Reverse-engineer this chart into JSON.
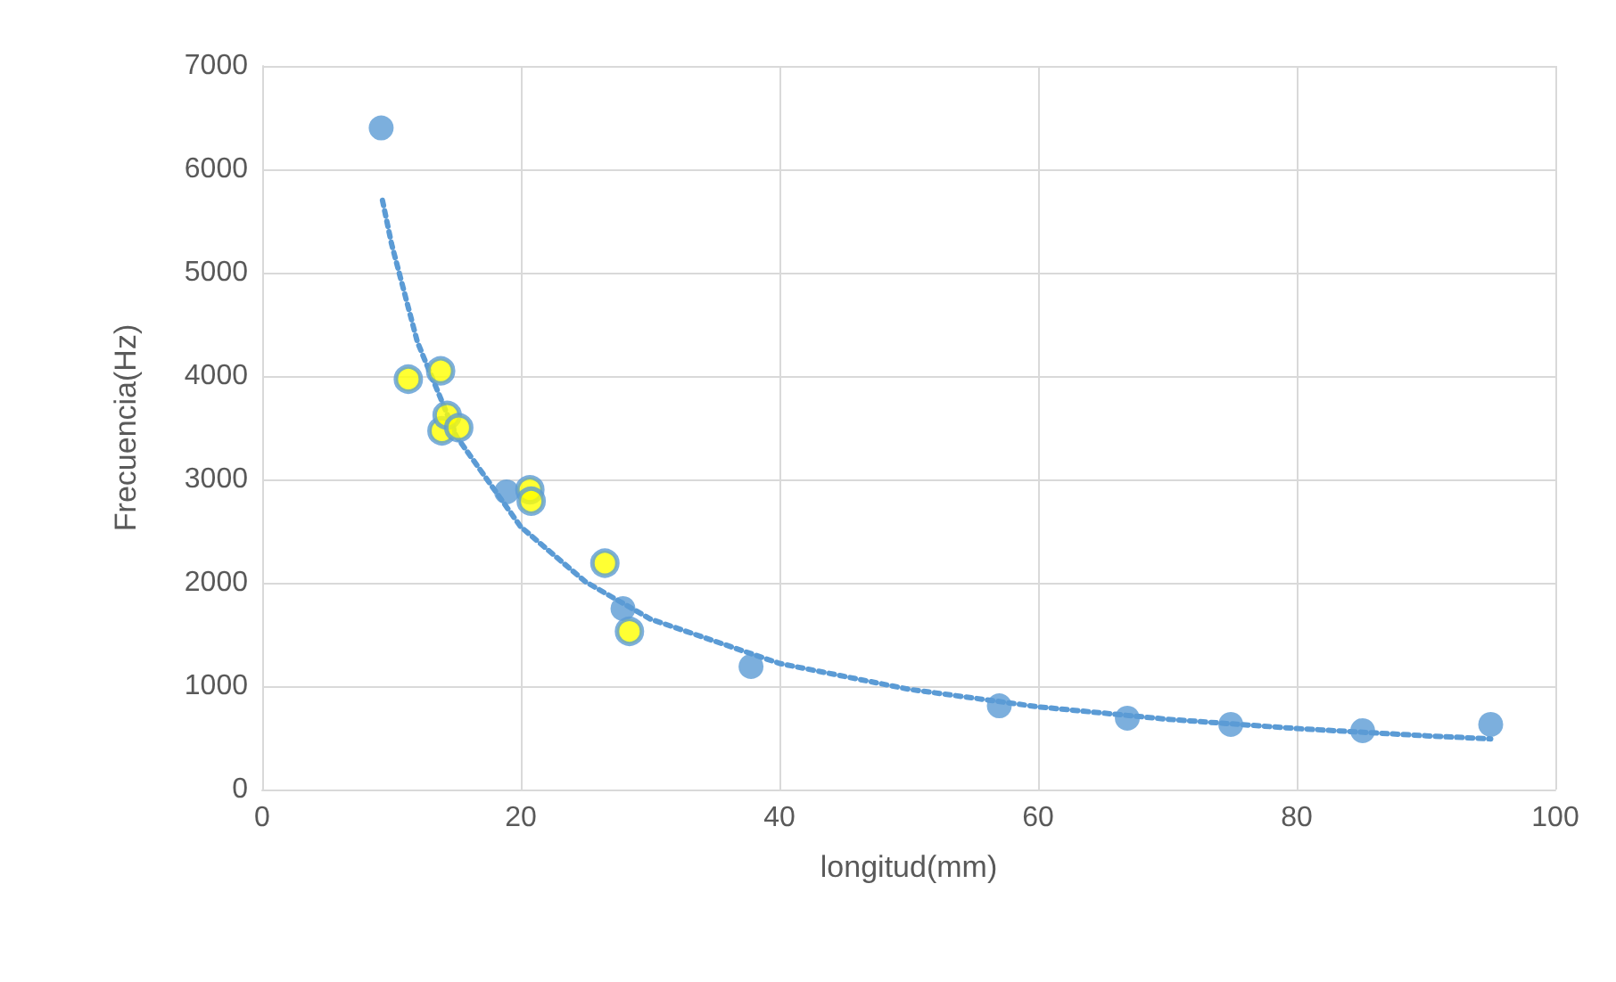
{
  "chart_data": {
    "type": "scatter",
    "xlabel": "longitud(mm)",
    "ylabel": "Frecuencia(Hz)",
    "xlim": [
      0,
      100
    ],
    "xticks": [
      0,
      20,
      40,
      60,
      80,
      100
    ],
    "ylim": [
      0,
      7000
    ],
    "yticks": [
      0,
      1000,
      2000,
      3000,
      4000,
      5000,
      6000,
      7000
    ],
    "grid": true,
    "marker": "circle",
    "series": [
      {
        "color": "#5b9bd5",
        "x": [
          9.2,
          18.9,
          27.9,
          37.8,
          57,
          66.9,
          74.9,
          85.1,
          95
        ],
        "values": [
          6400,
          2880,
          1750,
          1190,
          810,
          690,
          630,
          570,
          630
        ]
      },
      {
        "color": "#ffff00",
        "x": [
          11.3,
          13.8,
          13.9,
          14.3,
          15.2,
          20.7,
          20.8,
          26.5,
          28.4
        ],
        "values": [
          3970,
          4050,
          3470,
          3620,
          3500,
          2900,
          2790,
          2190,
          1530
        ]
      },
      {
        "type": "line",
        "color": "#5b9bd5",
        "line_style": "dotted",
        "marker": "none",
        "x": [
          9.3,
          10,
          12,
          15,
          20,
          25,
          30,
          40,
          50,
          60,
          70,
          80,
          90,
          95
        ],
        "values": [
          5700,
          5280,
          4330,
          3420,
          2540,
          2010,
          1650,
          1220,
          970,
          800,
          680,
          590,
          520,
          490
        ]
      }
    ]
  }
}
